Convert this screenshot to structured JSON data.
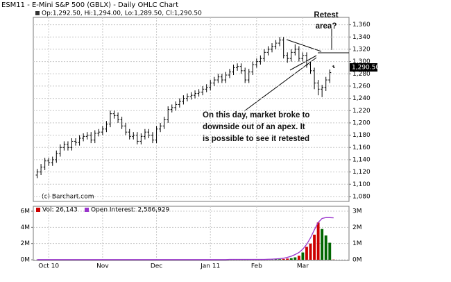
{
  "chart_data": [
    {
      "type": "ohlc",
      "title": "ESM11 - E-Mini S&P 500 (GBLX) - Daily OHLC Chart",
      "legend_text": "Op:1,292.50, Hi:1,294.00, Lo:1,289.50, Cl:1,290.50",
      "source": "(c) Barchart.com",
      "categories": [
        null,
        null,
        null,
        "Oct 10",
        null,
        null,
        null,
        null,
        null,
        null,
        null,
        null,
        null,
        null,
        null,
        null,
        null,
        "Nov",
        null,
        null,
        null,
        null,
        null,
        null,
        null,
        null,
        null,
        null,
        null,
        null,
        null,
        "Dec",
        null,
        null,
        null,
        null,
        null,
        null,
        null,
        null,
        null,
        null,
        null,
        null,
        null,
        "Jan 11",
        null,
        null,
        null,
        null,
        null,
        null,
        null,
        null,
        null,
        null,
        null,
        "Feb",
        null,
        null,
        null,
        null,
        null,
        null,
        null,
        null,
        null,
        null,
        null,
        "Mar",
        null,
        null,
        null,
        null,
        null,
        null,
        null,
        null
      ],
      "xlim": [
        -1,
        81
      ],
      "open": [
        1115,
        1120,
        1128,
        1138,
        1135,
        1140,
        1150,
        1160,
        1165,
        1160,
        1170,
        1168,
        1175,
        1178,
        1180,
        1172,
        1183,
        1185,
        1190,
        1198,
        1215,
        1212,
        1205,
        1195,
        1185,
        1178,
        1180,
        1170,
        1178,
        1185,
        1180,
        1172,
        1190,
        1195,
        1205,
        1222,
        1225,
        1230,
        1235,
        1240,
        1243,
        1245,
        1248,
        1250,
        1255,
        1258,
        1265,
        1270,
        1275,
        1270,
        1278,
        1283,
        1290,
        1292,
        1285,
        1270,
        1283,
        1295,
        1300,
        1305,
        1315,
        1320,
        1325,
        1330,
        1335,
        1310,
        1305,
        1315,
        1320,
        1305,
        1310,
        1295,
        1285,
        1265,
        1255,
        1258,
        1270,
        1292.5
      ],
      "high": [
        1125,
        1133,
        1143,
        1143,
        1145,
        1155,
        1165,
        1170,
        1170,
        1175,
        1175,
        1180,
        1183,
        1185,
        1185,
        1188,
        1190,
        1195,
        1203,
        1220,
        1220,
        1217,
        1210,
        1200,
        1190,
        1185,
        1185,
        1183,
        1190,
        1190,
        1185,
        1195,
        1200,
        1210,
        1227,
        1230,
        1235,
        1240,
        1245,
        1248,
        1250,
        1253,
        1255,
        1260,
        1263,
        1270,
        1275,
        1280,
        1280,
        1283,
        1288,
        1295,
        1297,
        1297,
        1290,
        1288,
        1300,
        1305,
        1310,
        1320,
        1325,
        1330,
        1335,
        1340,
        1340,
        1315,
        1320,
        1328,
        1325,
        1315,
        1315,
        1300,
        1290,
        1270,
        1262,
        1275,
        1287,
        1294
      ],
      "low": [
        1110,
        1115,
        1123,
        1130,
        1130,
        1135,
        1145,
        1155,
        1155,
        1155,
        1163,
        1163,
        1170,
        1173,
        1167,
        1167,
        1178,
        1180,
        1185,
        1193,
        1207,
        1200,
        1190,
        1180,
        1173,
        1173,
        1165,
        1165,
        1173,
        1175,
        1167,
        1167,
        1185,
        1190,
        1200,
        1217,
        1220,
        1225,
        1230,
        1235,
        1238,
        1240,
        1243,
        1245,
        1250,
        1253,
        1260,
        1265,
        1265,
        1265,
        1273,
        1278,
        1285,
        1280,
        1265,
        1265,
        1278,
        1290,
        1295,
        1300,
        1310,
        1315,
        1320,
        1325,
        1305,
        1298,
        1300,
        1310,
        1300,
        1300,
        1290,
        1280,
        1255,
        1245,
        1242,
        1252,
        1265,
        1289.5
      ],
      "close": [
        1120,
        1128,
        1138,
        1135,
        1140,
        1150,
        1160,
        1165,
        1160,
        1170,
        1168,
        1175,
        1178,
        1180,
        1172,
        1183,
        1185,
        1190,
        1198,
        1215,
        1212,
        1205,
        1195,
        1185,
        1178,
        1180,
        1170,
        1178,
        1185,
        1180,
        1172,
        1190,
        1195,
        1205,
        1222,
        1225,
        1230,
        1235,
        1240,
        1243,
        1245,
        1248,
        1250,
        1255,
        1258,
        1265,
        1270,
        1275,
        1270,
        1278,
        1283,
        1290,
        1292,
        1285,
        1270,
        1283,
        1295,
        1300,
        1305,
        1315,
        1320,
        1325,
        1330,
        1335,
        1310,
        1305,
        1315,
        1320,
        1305,
        1310,
        1295,
        1285,
        1265,
        1255,
        1258,
        1270,
        1282,
        1290.5
      ],
      "last_label": "1,290.50",
      "color": "#000000",
      "ylim": [
        1072,
        1372
      ],
      "yticks": [
        {
          "value": 1080,
          "label": "1,080"
        },
        {
          "value": 1100,
          "label": "1,100"
        },
        {
          "value": 1120,
          "label": "1,120"
        },
        {
          "value": 1140,
          "label": "1,140"
        },
        {
          "value": 1160,
          "label": "1,160"
        },
        {
          "value": 1180,
          "label": "1,180"
        },
        {
          "value": 1200,
          "label": "1,200"
        },
        {
          "value": 1220,
          "label": "1,220"
        },
        {
          "value": 1240,
          "label": "1,240"
        },
        {
          "value": 1260,
          "label": "1,260"
        },
        {
          "value": 1280,
          "label": "1,280"
        },
        {
          "value": 1300,
          "label": "1,300"
        },
        {
          "value": 1320,
          "label": "1,320"
        },
        {
          "value": 1340,
          "label": "1,340"
        },
        {
          "value": 1360,
          "label": "1,360"
        }
      ],
      "grid": true,
      "annotations": [
        {
          "lines": [
            "Retest",
            "area?"
          ]
        },
        {
          "lines": [
            "On this day, market broke to",
            "downside out of an apex.  It",
            "is possible to see it retested"
          ]
        }
      ]
    },
    {
      "type": "volume",
      "series": [
        {
          "name": "Vol: 26,143",
          "color": "#cc0000",
          "up_color": "#006600",
          "values": [
            0,
            0,
            0,
            0,
            0,
            0,
            0,
            0,
            0,
            0,
            0,
            0,
            0,
            0,
            0,
            0,
            0,
            0,
            0,
            0,
            0,
            0,
            0,
            0,
            0,
            0,
            0,
            0,
            0,
            0,
            0,
            0,
            0,
            0,
            0,
            0,
            0,
            0,
            0,
            0,
            0,
            0,
            0,
            0,
            0,
            0,
            0,
            0,
            0,
            0,
            0,
            0,
            0,
            0,
            0,
            0,
            0,
            0,
            0,
            0,
            0.02,
            0.03,
            0.05,
            0.07,
            0.1,
            0.15,
            0.2,
            0.3,
            0.5,
            0.9,
            1.6,
            2.0,
            3.1,
            4.6,
            3.8,
            3.0,
            2.1,
            0.026
          ]
        },
        {
          "name": "Open Interest: 2,586,929",
          "color": "#9933cc",
          "axis": "y2",
          "values": [
            0.01,
            0.01,
            0.01,
            0.01,
            0.01,
            0.01,
            0.01,
            0.01,
            0.01,
            0.01,
            0.01,
            0.01,
            0.01,
            0.01,
            0.01,
            0.01,
            0.01,
            0.01,
            0.01,
            0.01,
            0.01,
            0.01,
            0.01,
            0.01,
            0.01,
            0.01,
            0.01,
            0.01,
            0.01,
            0.01,
            0.01,
            0.01,
            0.01,
            0.01,
            0.01,
            0.01,
            0.01,
            0.01,
            0.01,
            0.01,
            0.01,
            0.01,
            0.01,
            0.01,
            0.01,
            0.01,
            0.01,
            0.01,
            0.01,
            0.01,
            0.02,
            0.02,
            0.02,
            0.02,
            0.02,
            0.02,
            0.02,
            0.02,
            0.02,
            0.02,
            0.03,
            0.04,
            0.05,
            0.07,
            0.1,
            0.15,
            0.22,
            0.32,
            0.45,
            0.65,
            0.95,
            1.35,
            1.85,
            2.3,
            2.55,
            2.6,
            2.6,
            2.587
          ]
        }
      ],
      "ylim": [
        0,
        6.6
      ],
      "yticks": [
        {
          "value": 0,
          "label": "0M"
        },
        {
          "value": 2,
          "label": "2M"
        },
        {
          "value": 4,
          "label": "4M"
        },
        {
          "value": 6,
          "label": "6M"
        }
      ],
      "y2lim": [
        0,
        3.3
      ],
      "y2ticks": [
        {
          "value": 0,
          "label": "0M"
        },
        {
          "value": 1,
          "label": "1M"
        },
        {
          "value": 2,
          "label": "2M"
        },
        {
          "value": 3,
          "label": "3M"
        }
      ]
    }
  ]
}
